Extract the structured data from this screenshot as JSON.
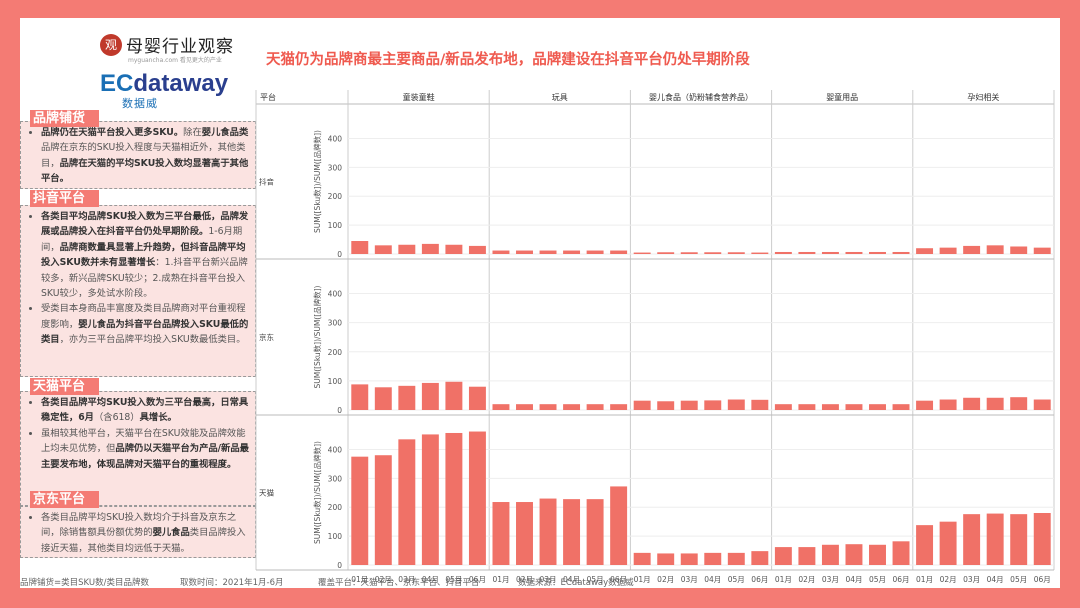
{
  "header": {
    "logo1_text": "母婴行业观察",
    "logo1_sub": "myguancha.com 看见更大的产业",
    "logo2_ec": "EC",
    "logo2_dw": "dataway",
    "logo2_cn": "数据威",
    "title": "天猫仍为品牌商最主要商品/新品发布地，品牌建设在抖音平台仍处早期阶段"
  },
  "sidebar": {
    "sections": [
      {
        "heading": "品牌铺货",
        "bullets": [
          [
            {
              "t": "品牌仍在天猫平台投入更多SKU。",
              "b": true
            },
            {
              "t": "除在",
              "b": false
            },
            {
              "t": "婴儿食品类",
              "b": true
            },
            {
              "t": "品牌在京东的SKU投入程度与天猫相近外，其他类目，",
              "b": false
            },
            {
              "t": "品牌在天猫的平均SKU投入数均显著高于其他平台。",
              "b": true
            }
          ]
        ]
      },
      {
        "heading": "抖音平台",
        "bullets": [
          [
            {
              "t": "各类目平均品牌SKU投入数为三平台最低，品牌发展或品牌投入在抖音平台仍处早期阶段。",
              "b": true
            },
            {
              "t": "1-6月期间，",
              "b": false
            },
            {
              "t": "品牌商数量具显著上升趋势，但抖音品牌平均投入SKU数并未有显著增长",
              "b": true
            },
            {
              "t": "：1.抖音平台新兴品牌较多，新兴品牌SKU较少；2.成熟在抖音平台投入SKU较少，多处试水阶段。",
              "b": false
            }
          ],
          [
            {
              "t": "受类目本身商品丰富度及类目品牌商对平台重视程度影响，",
              "b": false
            },
            {
              "t": "婴儿食品为抖音平台品牌投入SKU最低的类目",
              "b": true
            },
            {
              "t": "，亦为三平台品牌平均投入SKU数最低类目。",
              "b": false
            }
          ]
        ]
      },
      {
        "heading": "天猫平台",
        "bullets": [
          [
            {
              "t": "各类目品牌平均SKU投入数为三平台最高，日常具稳定性，6月",
              "b": true
            },
            {
              "t": "（含618）",
              "b": false
            },
            {
              "t": "具增长。",
              "b": true
            }
          ],
          [
            {
              "t": "虽相较其他平台，天猫平台在SKU效能及品牌效能上均未见优势，但",
              "b": false
            },
            {
              "t": "品牌仍以天猫平台为产品/新品最主要发布地，体现品牌对天猫平台的重视程度。",
              "b": true
            }
          ]
        ]
      },
      {
        "heading": "京东平台",
        "bullets": [
          [
            {
              "t": "各类目品牌平均SKU投入数均介于抖音及京东之间，除销售额具份额优势的",
              "b": false
            },
            {
              "t": "婴儿食品",
              "b": true
            },
            {
              "t": "类目品牌投入接近天猫，其他类目均远低于天猫。",
              "b": false
            }
          ]
        ]
      }
    ]
  },
  "footer": {
    "f1": "品牌铺货=类目SKU数/类目品牌数",
    "f2": "取数时间：2021年1月-6月",
    "f3": "覆盖平台：天猫平台、京东平台、抖音平台",
    "f4": "数据来源：ECdataway数据威"
  },
  "chart_data": {
    "type": "bar",
    "platform_header": "平台",
    "ylabel": "SUM([Sku数])/SUM([品牌数])",
    "ylim": [
      0,
      450
    ],
    "yticks": [
      0,
      100,
      200,
      300,
      400
    ],
    "months": [
      "01月",
      "02月",
      "03月",
      "04月",
      "05月",
      "06月"
    ],
    "categories": [
      "童装童鞋",
      "玩具",
      "婴儿食品（奶粉辅食营养品）",
      "婴童用品",
      "孕妇相关"
    ],
    "platforms": [
      {
        "name": "抖音",
        "values": [
          [
            45,
            30,
            32,
            35,
            32,
            28
          ],
          [
            12,
            12,
            12,
            12,
            12,
            12
          ],
          [
            5,
            6,
            6,
            6,
            6,
            5
          ],
          [
            7,
            7,
            7,
            7,
            7,
            7
          ],
          [
            20,
            22,
            28,
            30,
            26,
            22
          ]
        ]
      },
      {
        "name": "京东",
        "values": [
          [
            88,
            78,
            83,
            93,
            97,
            80
          ],
          [
            20,
            20,
            20,
            20,
            20,
            20
          ],
          [
            32,
            30,
            32,
            33,
            36,
            35
          ],
          [
            20,
            20,
            20,
            20,
            20,
            20
          ],
          [
            32,
            36,
            42,
            42,
            44,
            36
          ]
        ]
      },
      {
        "name": "天猫",
        "values": [
          [
            375,
            380,
            435,
            452,
            457,
            462
          ],
          [
            218,
            218,
            230,
            228,
            228,
            272
          ],
          [
            42,
            40,
            40,
            42,
            42,
            48
          ],
          [
            62,
            62,
            70,
            72,
            70,
            82
          ],
          [
            138,
            150,
            176,
            178,
            176,
            180
          ]
        ]
      }
    ],
    "bar_color": "#f07167"
  }
}
